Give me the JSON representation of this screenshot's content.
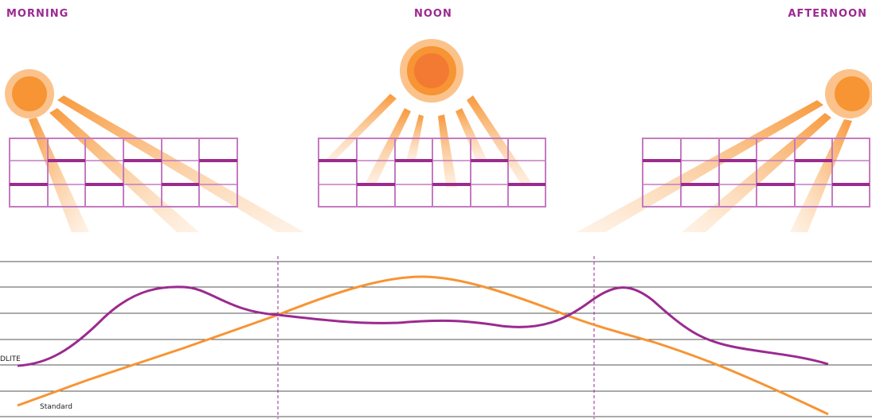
{
  "labels": {
    "morning": "MORNING",
    "noon": "NOON",
    "afternoon": "AFTERNOON"
  },
  "series_labels": {
    "purple": "DLITE",
    "orange": "Standard"
  },
  "colors": {
    "purple": "#9b2a8f",
    "orange": "#f79433",
    "sun_outer": "#fbc38b",
    "sun_inner": "#f37a32",
    "grid_frame": "#c47bc0"
  },
  "icons": [
    "sun-morning-icon",
    "sun-noon-icon",
    "sun-afternoon-icon",
    "window-grid-icon"
  ]
}
